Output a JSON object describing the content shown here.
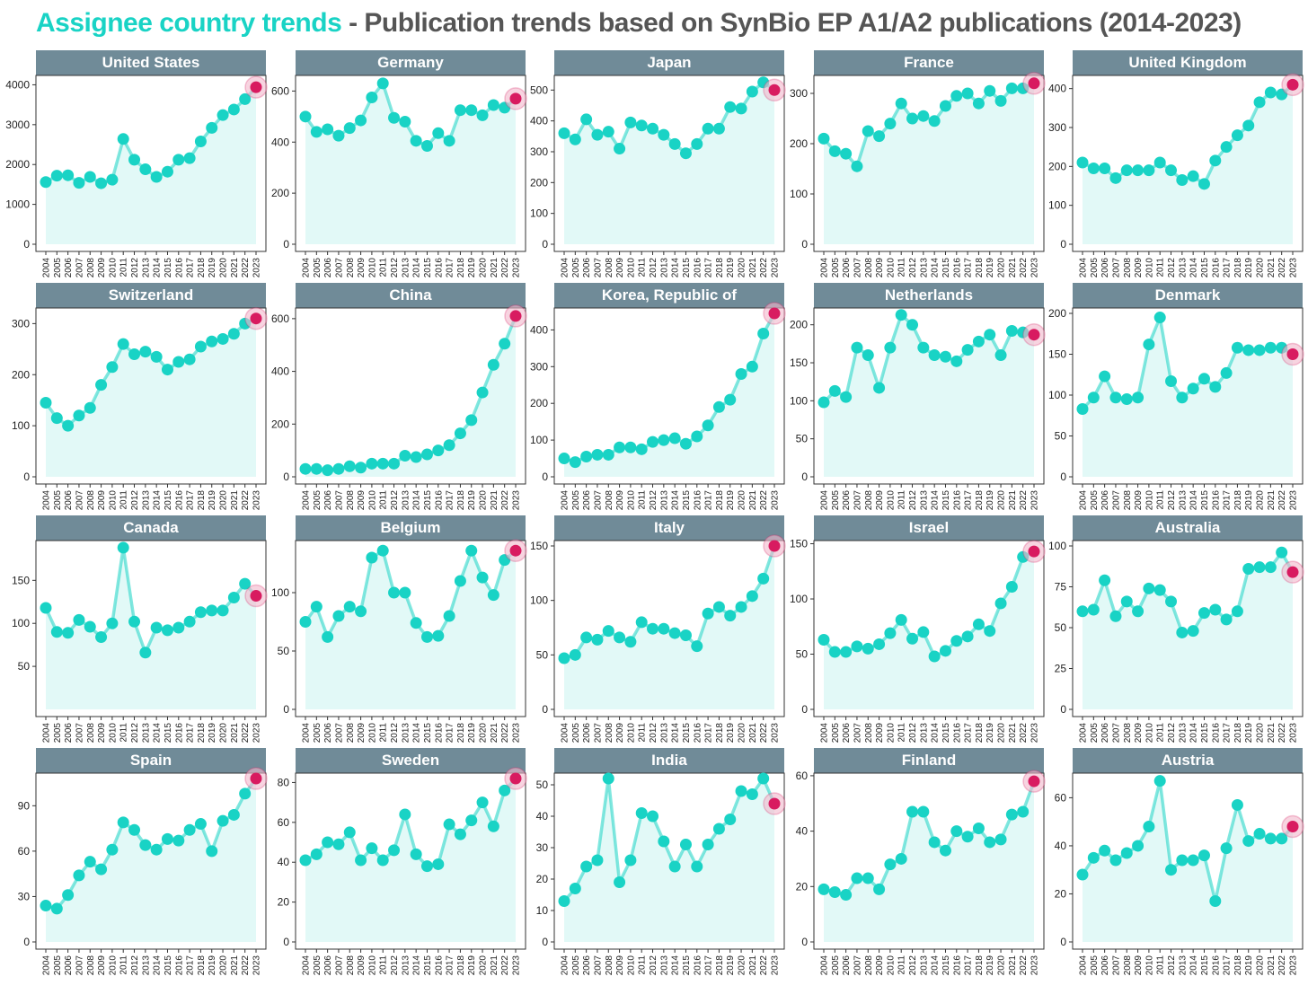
{
  "title": {
    "highlight": "Assignee country trends",
    "rest": " - Publication trends based on SynBio EP  A1/A2 publications (2014-2023)"
  },
  "colors": {
    "line": "#19d3c5",
    "point": "#19d3c5",
    "area": "#e2f9f7",
    "highlight_point": "#d81b60",
    "highlight_halo": "#f2b8cc",
    "strip": "#708b98",
    "strip_text": "#ffffff",
    "title_highlight": "#19d3c5",
    "title_rest": "#555555"
  },
  "chart_data": {
    "type": "line",
    "layout": "facet-grid",
    "grid": false,
    "highlighted_year": "2023",
    "x": [
      "2004",
      "2005",
      "2006",
      "2007",
      "2008",
      "2009",
      "2010",
      "2011",
      "2012",
      "2013",
      "2014",
      "2015",
      "2016",
      "2017",
      "2018",
      "2019",
      "2020",
      "2021",
      "2022",
      "2023"
    ],
    "panels": [
      {
        "name": "United States",
        "yticks": [
          0,
          1000,
          2000,
          3000,
          4000
        ],
        "ylim": [
          0,
          4100
        ],
        "values": [
          1560,
          1720,
          1730,
          1540,
          1690,
          1530,
          1620,
          2640,
          2120,
          1880,
          1690,
          1820,
          2120,
          2160,
          2580,
          2920,
          3240,
          3380,
          3640,
          3940
        ]
      },
      {
        "name": "Germany",
        "yticks": [
          0,
          200,
          400,
          600
        ],
        "ylim": [
          0,
          640
        ],
        "values": [
          500,
          440,
          450,
          425,
          455,
          485,
          575,
          630,
          495,
          480,
          405,
          385,
          435,
          405,
          525,
          525,
          505,
          545,
          535,
          570
        ]
      },
      {
        "name": "Japan",
        "yticks": [
          0,
          100,
          200,
          300,
          400,
          500
        ],
        "ylim": [
          0,
          530
        ],
        "values": [
          360,
          340,
          405,
          355,
          365,
          310,
          395,
          385,
          375,
          355,
          325,
          295,
          325,
          375,
          375,
          445,
          440,
          495,
          525,
          500
        ]
      },
      {
        "name": "France",
        "yticks": [
          0,
          100,
          200,
          300
        ],
        "ylim": [
          0,
          325
        ],
        "values": [
          210,
          185,
          180,
          155,
          225,
          215,
          240,
          280,
          250,
          255,
          245,
          275,
          295,
          300,
          280,
          305,
          285,
          310,
          310,
          320
        ]
      },
      {
        "name": "United Kingdom",
        "yticks": [
          0,
          100,
          200,
          300,
          400
        ],
        "ylim": [
          0,
          420
        ],
        "values": [
          210,
          195,
          195,
          170,
          190,
          190,
          190,
          210,
          190,
          165,
          175,
          155,
          215,
          250,
          280,
          305,
          365,
          390,
          385,
          410
        ]
      },
      {
        "name": "Switzerland",
        "yticks": [
          0,
          100,
          200,
          300
        ],
        "ylim": [
          0,
          320
        ],
        "values": [
          145,
          115,
          100,
          120,
          135,
          180,
          215,
          260,
          240,
          245,
          235,
          210,
          225,
          230,
          255,
          265,
          270,
          280,
          300,
          310
        ]
      },
      {
        "name": "China",
        "yticks": [
          0,
          200,
          400,
          600
        ],
        "ylim": [
          0,
          620
        ],
        "values": [
          30,
          30,
          25,
          30,
          40,
          35,
          50,
          50,
          50,
          80,
          75,
          85,
          100,
          120,
          165,
          215,
          320,
          425,
          505,
          610
        ]
      },
      {
        "name": "Korea, Republic of",
        "yticks": [
          0,
          100,
          200,
          300,
          400
        ],
        "ylim": [
          0,
          445
        ],
        "values": [
          50,
          40,
          55,
          60,
          60,
          80,
          80,
          75,
          95,
          100,
          105,
          90,
          110,
          140,
          190,
          210,
          280,
          300,
          390,
          445
        ]
      },
      {
        "name": "Netherlands",
        "yticks": [
          0,
          50,
          100,
          150,
          200
        ],
        "ylim": [
          0,
          215
        ],
        "values": [
          98,
          113,
          105,
          170,
          160,
          117,
          170,
          213,
          200,
          170,
          160,
          158,
          152,
          167,
          178,
          187,
          160,
          192,
          190,
          187
        ]
      },
      {
        "name": "Denmark",
        "yticks": [
          0,
          50,
          100,
          150,
          200
        ],
        "ylim": [
          0,
          200
        ],
        "values": [
          83,
          97,
          123,
          97,
          95,
          97,
          162,
          195,
          117,
          97,
          108,
          120,
          110,
          127,
          158,
          155,
          155,
          158,
          158,
          150
        ]
      },
      {
        "name": "Canada",
        "yticks": [
          50,
          100,
          150
        ],
        "ylim": [
          0,
          190
        ],
        "values": [
          118,
          90,
          89,
          104,
          96,
          84,
          100,
          188,
          102,
          66,
          95,
          92,
          95,
          102,
          113,
          115,
          115,
          130,
          146,
          132
        ]
      },
      {
        "name": "Belgium",
        "yticks": [
          0,
          50,
          100
        ],
        "ylim": [
          0,
          140
        ],
        "values": [
          75,
          88,
          62,
          80,
          88,
          84,
          130,
          136,
          100,
          100,
          74,
          62,
          63,
          80,
          110,
          136,
          113,
          98,
          128,
          136
        ]
      },
      {
        "name": "Italy",
        "yticks": [
          0,
          50,
          100,
          150
        ],
        "ylim": [
          0,
          150
        ],
        "values": [
          47,
          50,
          66,
          64,
          72,
          66,
          62,
          80,
          74,
          74,
          70,
          68,
          58,
          88,
          94,
          86,
          94,
          104,
          120,
          150
        ]
      },
      {
        "name": "Israel",
        "yticks": [
          0,
          50,
          100,
          150
        ],
        "ylim": [
          0,
          148
        ],
        "values": [
          63,
          52,
          52,
          57,
          55,
          59,
          69,
          81,
          64,
          70,
          48,
          53,
          62,
          66,
          77,
          71,
          96,
          111,
          138,
          143
        ]
      },
      {
        "name": "Australia",
        "yticks": [
          0,
          25,
          50,
          75,
          100
        ],
        "ylim": [
          0,
          100
        ],
        "values": [
          60,
          61,
          79,
          57,
          66,
          60,
          74,
          73,
          66,
          47,
          48,
          59,
          61,
          55,
          60,
          86,
          87,
          87,
          96,
          84
        ]
      },
      {
        "name": "Spain",
        "yticks": [
          0,
          30,
          60,
          90
        ],
        "ylim": [
          0,
          108
        ],
        "values": [
          24,
          22,
          31,
          44,
          53,
          48,
          61,
          79,
          74,
          64,
          61,
          68,
          67,
          74,
          78,
          60,
          80,
          84,
          98,
          108
        ]
      },
      {
        "name": "Sweden",
        "yticks": [
          0,
          20,
          40,
          60,
          80
        ],
        "ylim": [
          0,
          82
        ],
        "values": [
          41,
          44,
          50,
          49,
          55,
          41,
          47,
          41,
          46,
          64,
          44,
          38,
          39,
          59,
          54,
          61,
          70,
          58,
          76,
          82
        ]
      },
      {
        "name": "India",
        "yticks": [
          0,
          10,
          20,
          30,
          40,
          50
        ],
        "ylim": [
          0,
          52
        ],
        "values": [
          13,
          17,
          24,
          26,
          52,
          19,
          26,
          41,
          40,
          32,
          24,
          31,
          24,
          31,
          36,
          39,
          48,
          47,
          52,
          44
        ]
      },
      {
        "name": "Finland",
        "yticks": [
          0,
          20,
          40,
          60
        ],
        "ylim": [
          0,
          59
        ],
        "values": [
          19,
          18,
          17,
          23,
          23,
          19,
          28,
          30,
          47,
          47,
          36,
          33,
          40,
          38,
          41,
          36,
          37,
          46,
          47,
          58
        ]
      },
      {
        "name": "Austria",
        "yticks": [
          0,
          20,
          40,
          60
        ],
        "ylim": [
          0,
          68
        ],
        "values": [
          28,
          35,
          38,
          34,
          37,
          40,
          48,
          67,
          30,
          34,
          34,
          36,
          17,
          39,
          57,
          42,
          45,
          43,
          43,
          48
        ]
      }
    ]
  }
}
